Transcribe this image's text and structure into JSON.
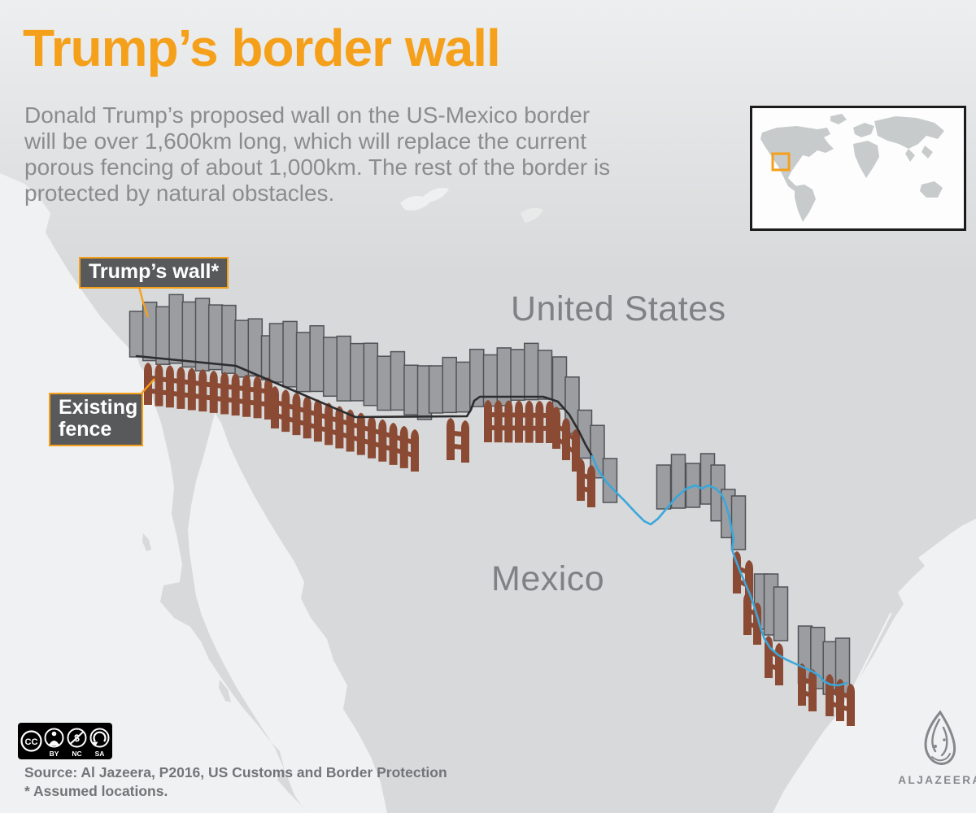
{
  "header": {
    "title": "Trump’s border wall",
    "description_lines": [
      "Donald Trump’s proposed wall on the US-Mexico border",
      "will be over 1,600km long, which will replace the current",
      "porous fencing of about 1,000km. The rest of the border is",
      "protected by natural obstacles."
    ]
  },
  "map": {
    "callouts": {
      "trumps_wall": "Trump’s wall*",
      "existing_fence": "Existing fence"
    },
    "country_labels": {
      "united_states": "United States",
      "mexico": "Mexico"
    }
  },
  "footer": {
    "cc_label": "CC",
    "license_badges": [
      "BY",
      "NC",
      "SA"
    ],
    "source": "Source: Al Jazeera, P2016, US Customs and Border Protection",
    "footnote": "* Assumed locations."
  },
  "branding": {
    "wordmark": "ALJAZEERA"
  },
  "colors": {
    "accent": "#F5A01B",
    "title": "#F5A01B",
    "body_text": "#8A8C8E",
    "country_label": "#7F8184",
    "callout_bg": "#58595B",
    "callout_text": "#FFFFFF",
    "land": "#D7D9DA",
    "ocean": "#F0F1F2",
    "wall_fill": "#9B9DA0",
    "wall_stroke": "#515358",
    "fence": "#8B4A33",
    "border_line": "#2D2D2F",
    "river": "#3AA7DB",
    "inset_land": "#C8CBCC",
    "inset_bg": "#FDFDFD",
    "source_text": "#737477",
    "logo": "#85878A",
    "cc_bg": "#000000"
  }
}
